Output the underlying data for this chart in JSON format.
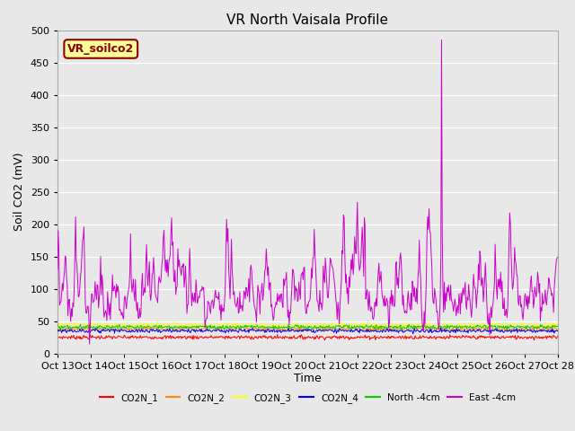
{
  "title": "VR North Vaisala Profile",
  "ylabel": "Soil CO2 (mV)",
  "xlabel": "Time",
  "ylim": [
    0,
    500
  ],
  "background_color": "#e8e8e8",
  "annotation_text": "VR_soilco2",
  "annotation_color": "#8B0000",
  "annotation_bg": "#ffff99",
  "x_tick_labels": [
    "Oct 13",
    "Oct 14",
    "Oct 15",
    "Oct 16",
    "Oct 17",
    "Oct 18",
    "Oct 19",
    "Oct 20",
    "Oct 21",
    "Oct 22",
    "Oct 23",
    "Oct 24",
    "Oct 25",
    "Oct 26",
    "Oct 27",
    "Oct 28"
  ],
  "legend": [
    "CO2N_1",
    "CO2N_2",
    "CO2N_3",
    "CO2N_4",
    "North -4cm",
    "East -4cm"
  ],
  "legend_colors": [
    "#ff0000",
    "#ff8c00",
    "#ffff00",
    "#0000ff",
    "#00cc00",
    "#cc00cc"
  ],
  "series_colors": {
    "CO2N_1": "#ff0000",
    "CO2N_2": "#ff8c00",
    "CO2N_3": "#ffff00",
    "CO2N_4": "#0000ff",
    "North_4cm": "#00cc00",
    "East_4cm": "#cc00cc"
  },
  "n_days": 15,
  "n_points_per_day": 48,
  "figsize": [
    6.4,
    4.8
  ],
  "dpi": 100
}
